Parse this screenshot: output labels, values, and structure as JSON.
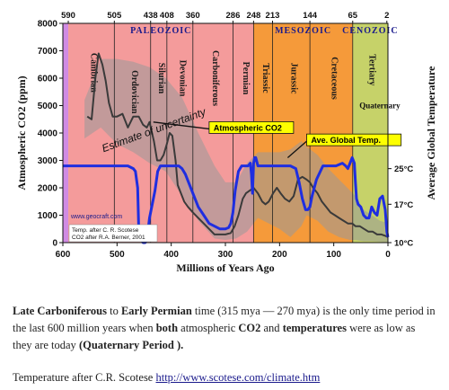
{
  "chart_data": {
    "type": "line",
    "xlabel": "Millions of Years Ago",
    "ylabel_left": "Atmospheric CO2 (ppm)",
    "ylabel_right": "Average Global Temperature",
    "xlim": [
      600,
      0
    ],
    "ylim": [
      0,
      8000
    ],
    "x_ticks": [
      600,
      500,
      400,
      300,
      200,
      100,
      0
    ],
    "y_ticks": [
      0,
      1000,
      2000,
      3000,
      4000,
      5000,
      6000,
      7000,
      8000
    ],
    "top_ticks": [
      {
        "x": 590,
        "label": "590"
      },
      {
        "x": 505,
        "label": "505"
      },
      {
        "x": 438,
        "label": "438"
      },
      {
        "x": 408,
        "label": "408"
      },
      {
        "x": 360,
        "label": "360"
      },
      {
        "x": 286,
        "label": "286"
      },
      {
        "x": 248,
        "label": "248"
      },
      {
        "x": 213,
        "label": "213"
      },
      {
        "x": 144,
        "label": "144"
      },
      {
        "x": 65,
        "label": "65"
      },
      {
        "x": 2,
        "label": "2"
      }
    ],
    "era_bands": [
      {
        "name": "Paleozoic",
        "label": "PALEOZOIC",
        "start": 590,
        "end": 248,
        "color": "#f49b9b"
      },
      {
        "name": "Mesozoic",
        "label": "MESOZOIC",
        "start": 248,
        "end": 65,
        "color": "#f59a3a"
      },
      {
        "name": "Cenozoic",
        "label": "CENOZOIC",
        "start": 65,
        "end": 0,
        "color": "#c6d269"
      }
    ],
    "precambrian_color": "#d08be3",
    "periods": [
      {
        "label": "Cambrian",
        "x": 548,
        "y": 6200
      },
      {
        "label": "Ordovician",
        "x": 472,
        "y": 5500
      },
      {
        "label": "Silurian",
        "x": 423,
        "y": 6000
      },
      {
        "label": "Devonian",
        "x": 384,
        "y": 6000
      },
      {
        "label": "Carboniferous",
        "x": 323,
        "y": 6000
      },
      {
        "label": "Permian",
        "x": 267,
        "y": 6000
      },
      {
        "label": "Triassic",
        "x": 230,
        "y": 6000
      },
      {
        "label": "Jurassic",
        "x": 178,
        "y": 6000
      },
      {
        "label": "Cretaceous",
        "x": 104,
        "y": 6000
      },
      {
        "label": "Tertiary",
        "x": 34,
        "y": 6300
      }
    ],
    "quaternary_label": "Quaternary",
    "temperature_ticks": [
      {
        "label": "25°C",
        "co2_equiv": 2700
      },
      {
        "label": "17°C",
        "co2_equiv": 1400
      },
      {
        "label": "10°C",
        "co2_equiv": 0
      }
    ],
    "series": [
      {
        "name": "Atmospheric CO2",
        "color": "#3a3a3a",
        "x": [
          555,
          547,
          540,
          534,
          527,
          521,
          515,
          508,
          500,
          490,
          480,
          470,
          460,
          452,
          445,
          440,
          432,
          426,
          420,
          414,
          408,
          403,
          398,
          392,
          388,
          382,
          376,
          369,
          360,
          350,
          340,
          330,
          320,
          310,
          300,
          290,
          283,
          276,
          268,
          262,
          255,
          248,
          240,
          232,
          226,
          220,
          212,
          205,
          198,
          190,
          182,
          174,
          166,
          158,
          150,
          144,
          138,
          130,
          122,
          114,
          106,
          98,
          90,
          82,
          74,
          66,
          60,
          52,
          44,
          36,
          28,
          20,
          12,
          5,
          0
        ],
        "values": [
          4600,
          4500,
          6000,
          6900,
          6500,
          5900,
          5100,
          4600,
          4600,
          4700,
          4200,
          4600,
          4600,
          4300,
          4200,
          4400,
          3700,
          3000,
          3000,
          3200,
          3600,
          4000,
          3900,
          3000,
          2100,
          1800,
          1500,
          1300,
          1100,
          900,
          700,
          500,
          300,
          300,
          300,
          350,
          600,
          1000,
          1600,
          1800,
          1900,
          2000,
          1800,
          1500,
          1400,
          1500,
          1800,
          2000,
          1800,
          1600,
          1500,
          1700,
          2300,
          2400,
          2300,
          2200,
          2000,
          1800,
          1500,
          1300,
          1100,
          1000,
          900,
          800,
          700,
          700,
          600,
          600,
          500,
          400,
          400,
          300,
          300,
          250,
          200
        ]
      },
      {
        "name": "Ave. Global Temp.",
        "color": "#1f2ee0",
        "x": [
          600,
          590,
          560,
          520,
          480,
          470,
          466,
          462,
          460,
          458,
          455,
          452,
          448,
          445,
          440,
          430,
          425,
          420,
          410,
          400,
          392,
          386,
          380,
          374,
          368,
          362,
          356,
          350,
          340,
          330,
          320,
          310,
          300,
          294,
          290,
          286,
          282,
          276,
          270,
          262,
          258,
          254,
          252,
          250,
          248,
          246,
          244,
          240,
          220,
          200,
          180,
          170,
          164,
          158,
          152,
          148,
          144,
          140,
          132,
          120,
          108,
          96,
          84,
          78,
          74,
          70,
          66,
          62,
          60,
          58,
          55,
          50,
          45,
          40,
          35,
          30,
          25,
          20,
          15,
          10,
          5,
          2,
          0
        ],
        "values": [
          2800,
          2800,
          2800,
          2800,
          2800,
          2700,
          2600,
          2000,
          500,
          200,
          100,
          0,
          0,
          100,
          900,
          1900,
          2600,
          2800,
          2800,
          2800,
          2800,
          2800,
          2700,
          2500,
          2200,
          1900,
          1600,
          1300,
          1000,
          700,
          600,
          500,
          500,
          550,
          700,
          1100,
          1900,
          2600,
          2800,
          2800,
          2800,
          2900,
          2500,
          1800,
          2900,
          3100,
          3100,
          2800,
          2800,
          2800,
          2800,
          2700,
          2200,
          1600,
          1200,
          1200,
          1300,
          1700,
          2300,
          2800,
          2800,
          2800,
          2900,
          2800,
          2700,
          2900,
          3100,
          2900,
          2200,
          1600,
          1400,
          1300,
          1000,
          900,
          900,
          1300,
          1100,
          1000,
          1600,
          1700,
          1200,
          400,
          200
        ]
      }
    ],
    "uncertainty_band": {
      "upper": [
        [
          560,
          5200
        ],
        [
          530,
          6700
        ],
        [
          500,
          6700
        ],
        [
          470,
          6600
        ],
        [
          440,
          6400
        ],
        [
          410,
          6000
        ],
        [
          380,
          5300
        ],
        [
          350,
          4000
        ],
        [
          320,
          2800
        ],
        [
          300,
          2200
        ],
        [
          280,
          2200
        ],
        [
          260,
          2900
        ],
        [
          240,
          3300
        ],
        [
          200,
          3300
        ],
        [
          180,
          3400
        ],
        [
          160,
          3700
        ],
        [
          150,
          3500
        ],
        [
          130,
          3200
        ],
        [
          110,
          2700
        ],
        [
          90,
          2300
        ],
        [
          70,
          1900
        ],
        [
          60,
          1700
        ],
        [
          45,
          1200
        ],
        [
          30,
          1000
        ],
        [
          15,
          800
        ],
        [
          0,
          700
        ]
      ],
      "lower": [
        [
          560,
          3800
        ],
        [
          530,
          4200
        ],
        [
          500,
          3600
        ],
        [
          470,
          3300
        ],
        [
          440,
          2900
        ],
        [
          410,
          2600
        ],
        [
          380,
          1700
        ],
        [
          350,
          800
        ],
        [
          320,
          150
        ],
        [
          300,
          100
        ],
        [
          280,
          150
        ],
        [
          260,
          400
        ],
        [
          240,
          900
        ],
        [
          200,
          500
        ],
        [
          180,
          200
        ],
        [
          160,
          600
        ],
        [
          150,
          1000
        ],
        [
          130,
          800
        ],
        [
          110,
          400
        ],
        [
          90,
          200
        ],
        [
          70,
          100
        ],
        [
          60,
          100
        ],
        [
          45,
          50
        ],
        [
          30,
          50
        ],
        [
          15,
          30
        ],
        [
          0,
          0
        ]
      ],
      "color": "#999999"
    },
    "annotations": [
      {
        "text": "Estimate of uncertainty",
        "x": 525,
        "y": 3300,
        "rotate": -20
      },
      {
        "text": "Atmospheric CO2",
        "x": 330,
        "y": 4150,
        "boxed": true,
        "box_fill": "#fdff00",
        "arrow_to": [
          433,
          4400
        ]
      },
      {
        "text": "Ave. Global Temp.",
        "x": 150,
        "y": 3700,
        "boxed": true,
        "box_fill": "#fdff00",
        "arrow_to": [
          185,
          3100
        ]
      }
    ],
    "credits": {
      "site": "www.geocraft.com",
      "line1": "Temp. after C. R. Scotese",
      "line2": "CO2 after R.A. Berner, 2001"
    }
  },
  "captions": {
    "p1_period1": "Late Carboniferous",
    "p1_to": " to ",
    "p1_period2": "Early Permian",
    "p1_range": " time (315 mya — 270 mya) is the only time period in the last 600 million years when ",
    "p1_both": "both",
    "p1_atm": " atmospheric ",
    "p1_co2": "CO2",
    "p1_and": " and ",
    "p1_temps": "temperatures",
    "p1_end": " were as low as they are today ",
    "p1_quat": "(Quaternary Period ).",
    "p2_text": "Temperature after C.R. Scotese ",
    "p2_link": "http://www.scotese.com/climate.htm"
  }
}
